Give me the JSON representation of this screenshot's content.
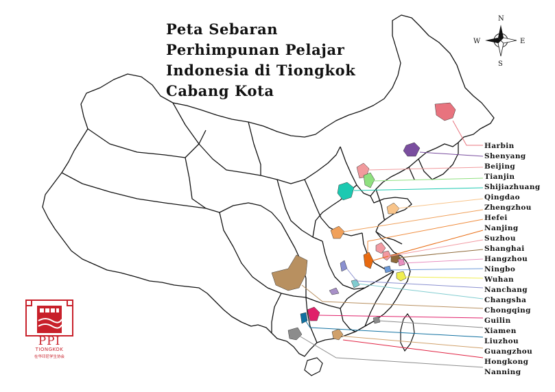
{
  "title_lines": [
    "Peta Sebaran",
    "Perhimpunan Pelajar",
    "Indonesia di Tiongkok",
    "Cabang Kota"
  ],
  "compass": {
    "n": "N",
    "s": "S",
    "e": "E",
    "w": "W"
  },
  "cities": [
    {
      "name": "Harbin",
      "color": "#e8737e"
    },
    {
      "name": "Shenyang",
      "color": "#7a4e9f"
    },
    {
      "name": "Beijing",
      "color": "#f19a9d"
    },
    {
      "name": "Tianjin",
      "color": "#8fe07f"
    },
    {
      "name": "Shijiazhuang",
      "color": "#1cc9b1"
    },
    {
      "name": "Qingdao",
      "color": "#f8c48a"
    },
    {
      "name": "Zhengzhou",
      "color": "#f0a05a"
    },
    {
      "name": "Hefei",
      "color": "#f08a3a"
    },
    {
      "name": "Nanjing",
      "color": "#e86a10"
    },
    {
      "name": "Suzhou",
      "color": "#f29aa2"
    },
    {
      "name": "Shanghai",
      "color": "#8e6a3a"
    },
    {
      "name": "Hangzhou",
      "color": "#e890c0"
    },
    {
      "name": "Ningbo",
      "color": "#6a98d8"
    },
    {
      "name": "Wuhan",
      "color": "#f0ee50"
    },
    {
      "name": "Nanchang",
      "color": "#8a90d0"
    },
    {
      "name": "Changsha",
      "color": "#80ccd0"
    },
    {
      "name": "Chongqing",
      "color": "#b89060"
    },
    {
      "name": "Guilin",
      "color": "#e0206a"
    },
    {
      "name": "Xiamen",
      "color": "#8a8a8a"
    },
    {
      "name": "Liuzhou",
      "color": "#1070a0"
    },
    {
      "name": "Guangzhou",
      "color": "#d0a06a"
    },
    {
      "name": "Hongkong",
      "color": "#e02040"
    },
    {
      "name": "Nanning",
      "color": "#8c8c8c"
    }
  ],
  "logo": {
    "ppi": "PPI",
    "tiongkok": "TIONGKOK",
    "chinese": "在华印尼学生协会",
    "color": "#c8202a"
  }
}
